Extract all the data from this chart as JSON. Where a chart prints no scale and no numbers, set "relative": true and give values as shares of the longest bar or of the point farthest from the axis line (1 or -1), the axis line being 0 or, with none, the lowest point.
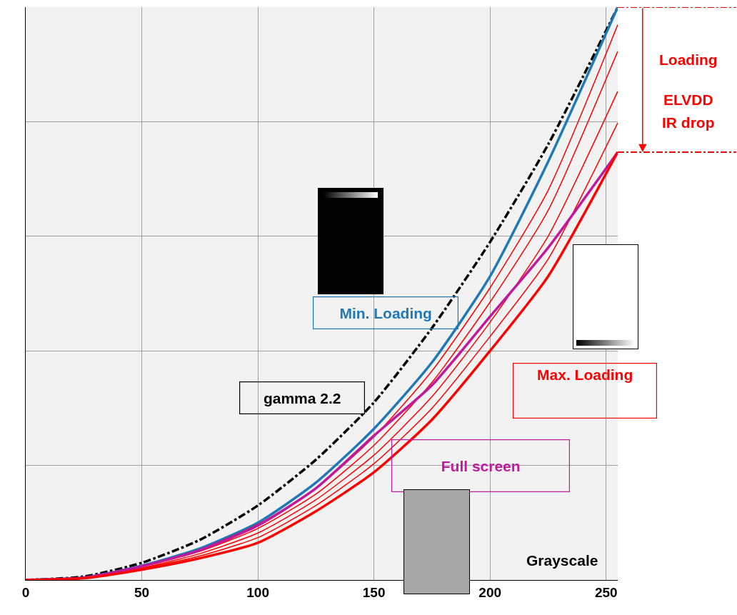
{
  "chart_data": {
    "type": "line",
    "relative": true,
    "x": [
      0,
      25,
      50,
      75,
      100,
      125,
      150,
      175,
      200,
      225,
      255
    ],
    "xlim": [
      0,
      255
    ],
    "xticks": [
      0,
      50,
      100,
      150,
      200,
      250
    ],
    "series": [
      {
        "name": "gamma 2.2",
        "color": "#000000",
        "line_style": "dashed",
        "values": [
          0,
          0.006,
          0.03,
          0.07,
          0.13,
          0.21,
          0.31,
          0.44,
          0.59,
          0.76,
          1
        ]
      },
      {
        "name": "Min. Loading",
        "color": "#1f78b8",
        "values": [
          0,
          0.004,
          0.025,
          0.055,
          0.1,
          0.17,
          0.264,
          0.38,
          0.53,
          0.73,
          1
        ]
      },
      {
        "color": "#ff0000",
        "values": [
          0,
          0.004,
          0.024,
          0.053,
          0.097,
          0.16,
          0.25,
          0.365,
          0.51,
          0.68,
          0.969
        ]
      },
      {
        "color": "#ff0000",
        "values": [
          0,
          0.004,
          0.023,
          0.05,
          0.09,
          0.15,
          0.235,
          0.345,
          0.485,
          0.645,
          0.923
        ]
      },
      {
        "color": "#ff0000",
        "values": [
          0,
          0.003,
          0.021,
          0.046,
          0.082,
          0.14,
          0.218,
          0.32,
          0.45,
          0.6,
          0.853
        ]
      },
      {
        "color": "#ff0000",
        "values": [
          0,
          0.003,
          0.02,
          0.042,
          0.074,
          0.13,
          0.203,
          0.3,
          0.425,
          0.56,
          0.798
        ]
      },
      {
        "name": "Full screen",
        "color": "#c0189e",
        "values": [
          0,
          0.004,
          0.024,
          0.052,
          0.095,
          0.16,
          0.252,
          0.34,
          0.46,
          0.58,
          0.747
        ]
      },
      {
        "name": "Max. Loading",
        "color": "#ff0000",
        "values": [
          0,
          0.003,
          0.018,
          0.038,
          0.065,
          0.12,
          0.188,
          0.28,
          0.4,
          0.53,
          0.747
        ]
      }
    ],
    "annotations": [
      "Loading",
      "ELVDD",
      "IR drop",
      "Grayscale"
    ],
    "grid": true,
    "legend": false,
    "marker": "none",
    "line_style": "solid",
    "tick_labels": "x"
  }
}
